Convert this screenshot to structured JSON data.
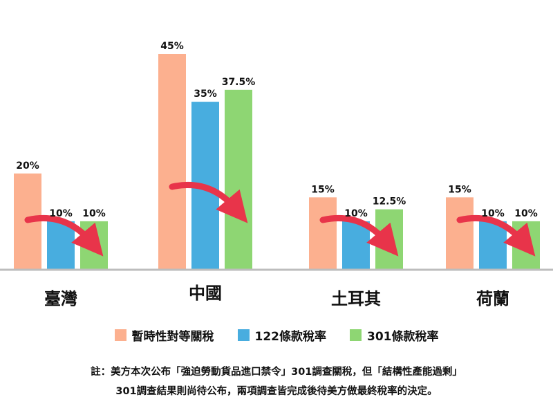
{
  "colors": {
    "temp": "#FCB08F",
    "s122": "#48ADDF",
    "s301": "#8ED673",
    "axis": "#BDBDBD",
    "arrow": "#E8344A"
  },
  "legend": [
    {
      "label": "暫時性對等關稅",
      "color": "#FCB08F"
    },
    {
      "label": "122條款稅率",
      "color": "#48ADDF"
    },
    {
      "label": "301條款稅率",
      "color": "#8ED673"
    }
  ],
  "note": {
    "line1": "註：美方本次公布「強迫勞動貨品進口禁令」301調查關稅，但「結構性產能過剩」",
    "line2": "301調查結果則尚待公布，兩項調查皆完成後待美方做最終稅率的決定。"
  },
  "chart_data": {
    "type": "bar",
    "categories": [
      "臺灣",
      "中國",
      "土耳其",
      "荷蘭"
    ],
    "series": [
      {
        "name": "暫時性對等關稅",
        "values": [
          20,
          45,
          15,
          15
        ],
        "labels": [
          "20%",
          "45%",
          "15%",
          "15%"
        ]
      },
      {
        "name": "122條款稅率",
        "values": [
          10,
          35,
          10,
          10
        ],
        "labels": [
          "10%",
          "35%",
          "10%",
          "10%"
        ]
      },
      {
        "name": "301條款稅率",
        "values": [
          10,
          37.5,
          12.5,
          10
        ],
        "labels": [
          "10%",
          "37.5%",
          "12.5%",
          "10%"
        ]
      }
    ],
    "ylim": [
      0,
      45
    ],
    "grid": false,
    "legend_position": "bottom"
  }
}
